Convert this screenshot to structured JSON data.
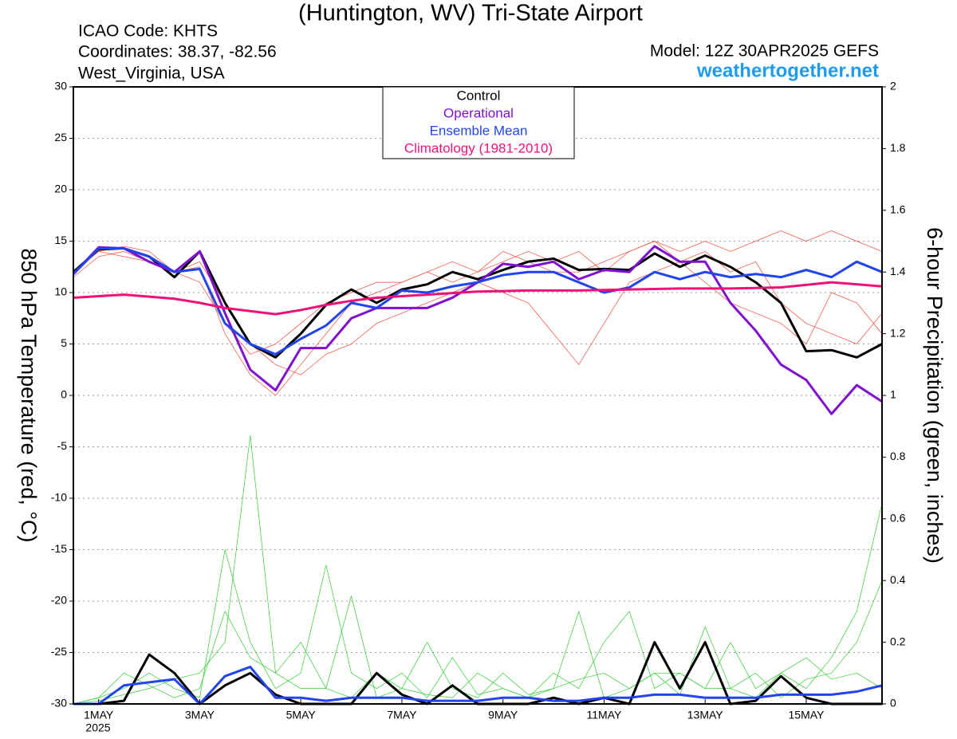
{
  "chart_data": {
    "type": "line",
    "title": "(Huntington, WV) Tri-State Airport",
    "info": [
      "ICAO Code: KHTS",
      "Coordinates: 38.37, -82.56",
      "West_Virginia, USA"
    ],
    "model": "Model: 12Z 30APR2025 GEFS",
    "site": "weathertogether.net",
    "y_label": "850 hPa Temperature (red, °C)",
    "y2_label": "6-hour Precipitation (green, inches)",
    "x_sublabel": "2025",
    "grid": true,
    "x": [
      -0.5,
      0,
      0.5,
      1,
      1.5,
      2,
      2.5,
      3,
      3.5,
      4,
      4.5,
      5,
      5.5,
      6,
      6.5,
      7,
      7.5,
      8,
      8.5,
      9,
      9.5,
      10,
      10.5,
      11,
      11.5,
      12,
      12.5,
      13,
      13.5,
      14,
      14.5,
      15,
      15.5
    ],
    "xlim": [
      -0.5,
      15.5
    ],
    "xticks": [
      {
        "value": 0,
        "label": "1MAY"
      },
      {
        "value": 2,
        "label": "3MAY"
      },
      {
        "value": 4,
        "label": "5MAY"
      },
      {
        "value": 6,
        "label": "7MAY"
      },
      {
        "value": 8,
        "label": "9MAY"
      },
      {
        "value": 10,
        "label": "11MAY"
      },
      {
        "value": 12,
        "label": "13MAY"
      },
      {
        "value": 14,
        "label": "15MAY"
      }
    ],
    "ylim": [
      -30,
      30
    ],
    "yticks": [
      30,
      25,
      20,
      15,
      10,
      5,
      0,
      -5,
      -10,
      -15,
      -20,
      -25,
      -30
    ],
    "y2lim": [
      0,
      2
    ],
    "y2ticks": [
      2,
      1.8,
      1.6,
      1.4,
      1.2,
      1,
      0.8,
      0.6,
      0.4,
      0.2,
      0
    ],
    "series": [
      {
        "color": "#f04a3a",
        "width": 0.7,
        "values": [
          12,
          14,
          14.5,
          14,
          12,
          12.5,
          6,
          2,
          0,
          3,
          6,
          9,
          10,
          11,
          12,
          11,
          12,
          13,
          14,
          13,
          14,
          12,
          14,
          15,
          14,
          15,
          14,
          15,
          16,
          15,
          16,
          15,
          14
        ]
      },
      {
        "color": "#f04a3a",
        "width": 0.7,
        "values": [
          11.5,
          13.5,
          14,
          13,
          12,
          13,
          9,
          5,
          3,
          2,
          4,
          5,
          7,
          8,
          9,
          10,
          11,
          10,
          9,
          6,
          3,
          7,
          11,
          12,
          13,
          11,
          9,
          8,
          7,
          5,
          10,
          9,
          6
        ]
      },
      {
        "color": "#f04a3a",
        "width": 0.7,
        "values": [
          12,
          14,
          13.5,
          13,
          12,
          11,
          7,
          4,
          5,
          7,
          9,
          10,
          11,
          11,
          12,
          13,
          12,
          14,
          13,
          12,
          12,
          13,
          14,
          15,
          13,
          14,
          12,
          13,
          9,
          7,
          6,
          5,
          8
        ]
      },
      {
        "color": "#33cc33",
        "width": 0.7,
        "axis": "y2",
        "values": [
          0,
          0.02,
          0.05,
          0.1,
          0.05,
          0.02,
          0.5,
          0.2,
          0.05,
          0.1,
          0.45,
          0.1,
          0.05,
          0.1,
          0.02,
          0.15,
          0.03,
          0.05,
          0.02,
          0.1,
          0.05,
          0.2,
          0.3,
          0.05,
          0.1,
          0.05,
          0.2,
          0.05,
          0.1,
          0.05,
          0.15,
          0.3,
          0.65
        ]
      },
      {
        "color": "#33cc33",
        "width": 0.7,
        "axis": "y2",
        "values": [
          0,
          0.01,
          0.03,
          0.05,
          0.08,
          0.1,
          0.2,
          0.87,
          0.1,
          0.05,
          0.05,
          0.35,
          0.02,
          0.05,
          0.2,
          0.05,
          0.02,
          0.1,
          0.03,
          0.05,
          0.3,
          0.02,
          0.05,
          0.1,
          0.03,
          0.25,
          0.05,
          0.02,
          0.1,
          0.15,
          0.08,
          0.1,
          0.05
        ]
      },
      {
        "color": "#33cc33",
        "width": 0.7,
        "axis": "y2",
        "values": [
          0,
          0.02,
          0.1,
          0.06,
          0.02,
          0.05,
          0.3,
          0.15,
          0.1,
          0.2,
          0.05,
          0.02,
          0.1,
          0.05,
          0.03,
          0.02,
          0.1,
          0.05,
          0.02,
          0.05,
          0.08,
          0.1,
          0.05,
          0.1,
          0.1,
          0.05,
          0.05,
          0.1,
          0.02,
          0.08,
          0.1,
          0.2,
          0.4
        ]
      },
      {
        "color": "#000000",
        "width": 3,
        "axis": "y2",
        "values": [
          0,
          0,
          0.01,
          0.16,
          0.1,
          0,
          0.06,
          0.1,
          0.03,
          0,
          0,
          0,
          0.1,
          0.03,
          0,
          0.06,
          0,
          0,
          0,
          0.02,
          0,
          0.02,
          0,
          0.2,
          0.05,
          0.2,
          0,
          0.01,
          0.09,
          0.02,
          0,
          0,
          0
        ]
      },
      {
        "color": "#2244ee",
        "width": 3,
        "axis": "y2",
        "values": [
          0,
          0,
          0.06,
          0.07,
          0.08,
          0,
          0.09,
          0.12,
          0.02,
          0.02,
          0.01,
          0.02,
          0.02,
          0.02,
          0.01,
          0.01,
          0.01,
          0.02,
          0.02,
          0.01,
          0.01,
          0.02,
          0.02,
          0.03,
          0.03,
          0.02,
          0.02,
          0.02,
          0.03,
          0.03,
          0.03,
          0.04,
          0.06
        ]
      },
      {
        "name": "Control",
        "color": "#000000",
        "width": 3,
        "values": [
          12,
          14.2,
          14.3,
          13.5,
          11.5,
          14,
          9,
          5,
          3.7,
          6,
          8.8,
          10.3,
          9,
          10.3,
          10.8,
          12,
          11.3,
          12.2,
          13,
          13.3,
          12.2,
          12.3,
          12.2,
          13.8,
          12.5,
          13.6,
          12.5,
          11,
          9,
          4.3,
          4.4,
          3.7,
          5
        ]
      },
      {
        "name": "Operational",
        "color": "#8010d0",
        "width": 3,
        "values": [
          11.8,
          14.4,
          14.3,
          13,
          12,
          14,
          8,
          2.5,
          0.5,
          4.6,
          4.6,
          7.5,
          8.5,
          8.5,
          8.5,
          9.5,
          11,
          12.8,
          12.5,
          13,
          11.3,
          12.2,
          12,
          14.5,
          13,
          13,
          9,
          6.3,
          3,
          1.5,
          -1.8,
          1,
          -0.6
        ]
      },
      {
        "name": "Ensemble Mean",
        "color": "#2244ee",
        "width": 3,
        "values": [
          11.8,
          14.3,
          14.3,
          13.5,
          12,
          12.3,
          7,
          5,
          4,
          5.5,
          6.8,
          9,
          8.5,
          10.2,
          10,
          10.6,
          11,
          11.7,
          12,
          12,
          11,
          10,
          10.5,
          12,
          11.3,
          12,
          11.5,
          11.8,
          11.5,
          12.2,
          11.5,
          13,
          12
        ]
      },
      {
        "name": "Climatology (1981-2010)",
        "color": "#ee1177",
        "width": 3,
        "values": [
          9.5,
          9.65,
          9.8,
          9.6,
          9.4,
          9.0,
          8.5,
          8.2,
          7.9,
          8.3,
          8.8,
          9.2,
          9.5,
          9.65,
          9.8,
          9.95,
          10.1,
          10.15,
          10.2,
          10.2,
          10.2,
          10.25,
          10.3,
          10.35,
          10.4,
          10.4,
          10.4,
          10.45,
          10.5,
          10.75,
          11,
          10.8,
          10.6
        ]
      }
    ]
  }
}
